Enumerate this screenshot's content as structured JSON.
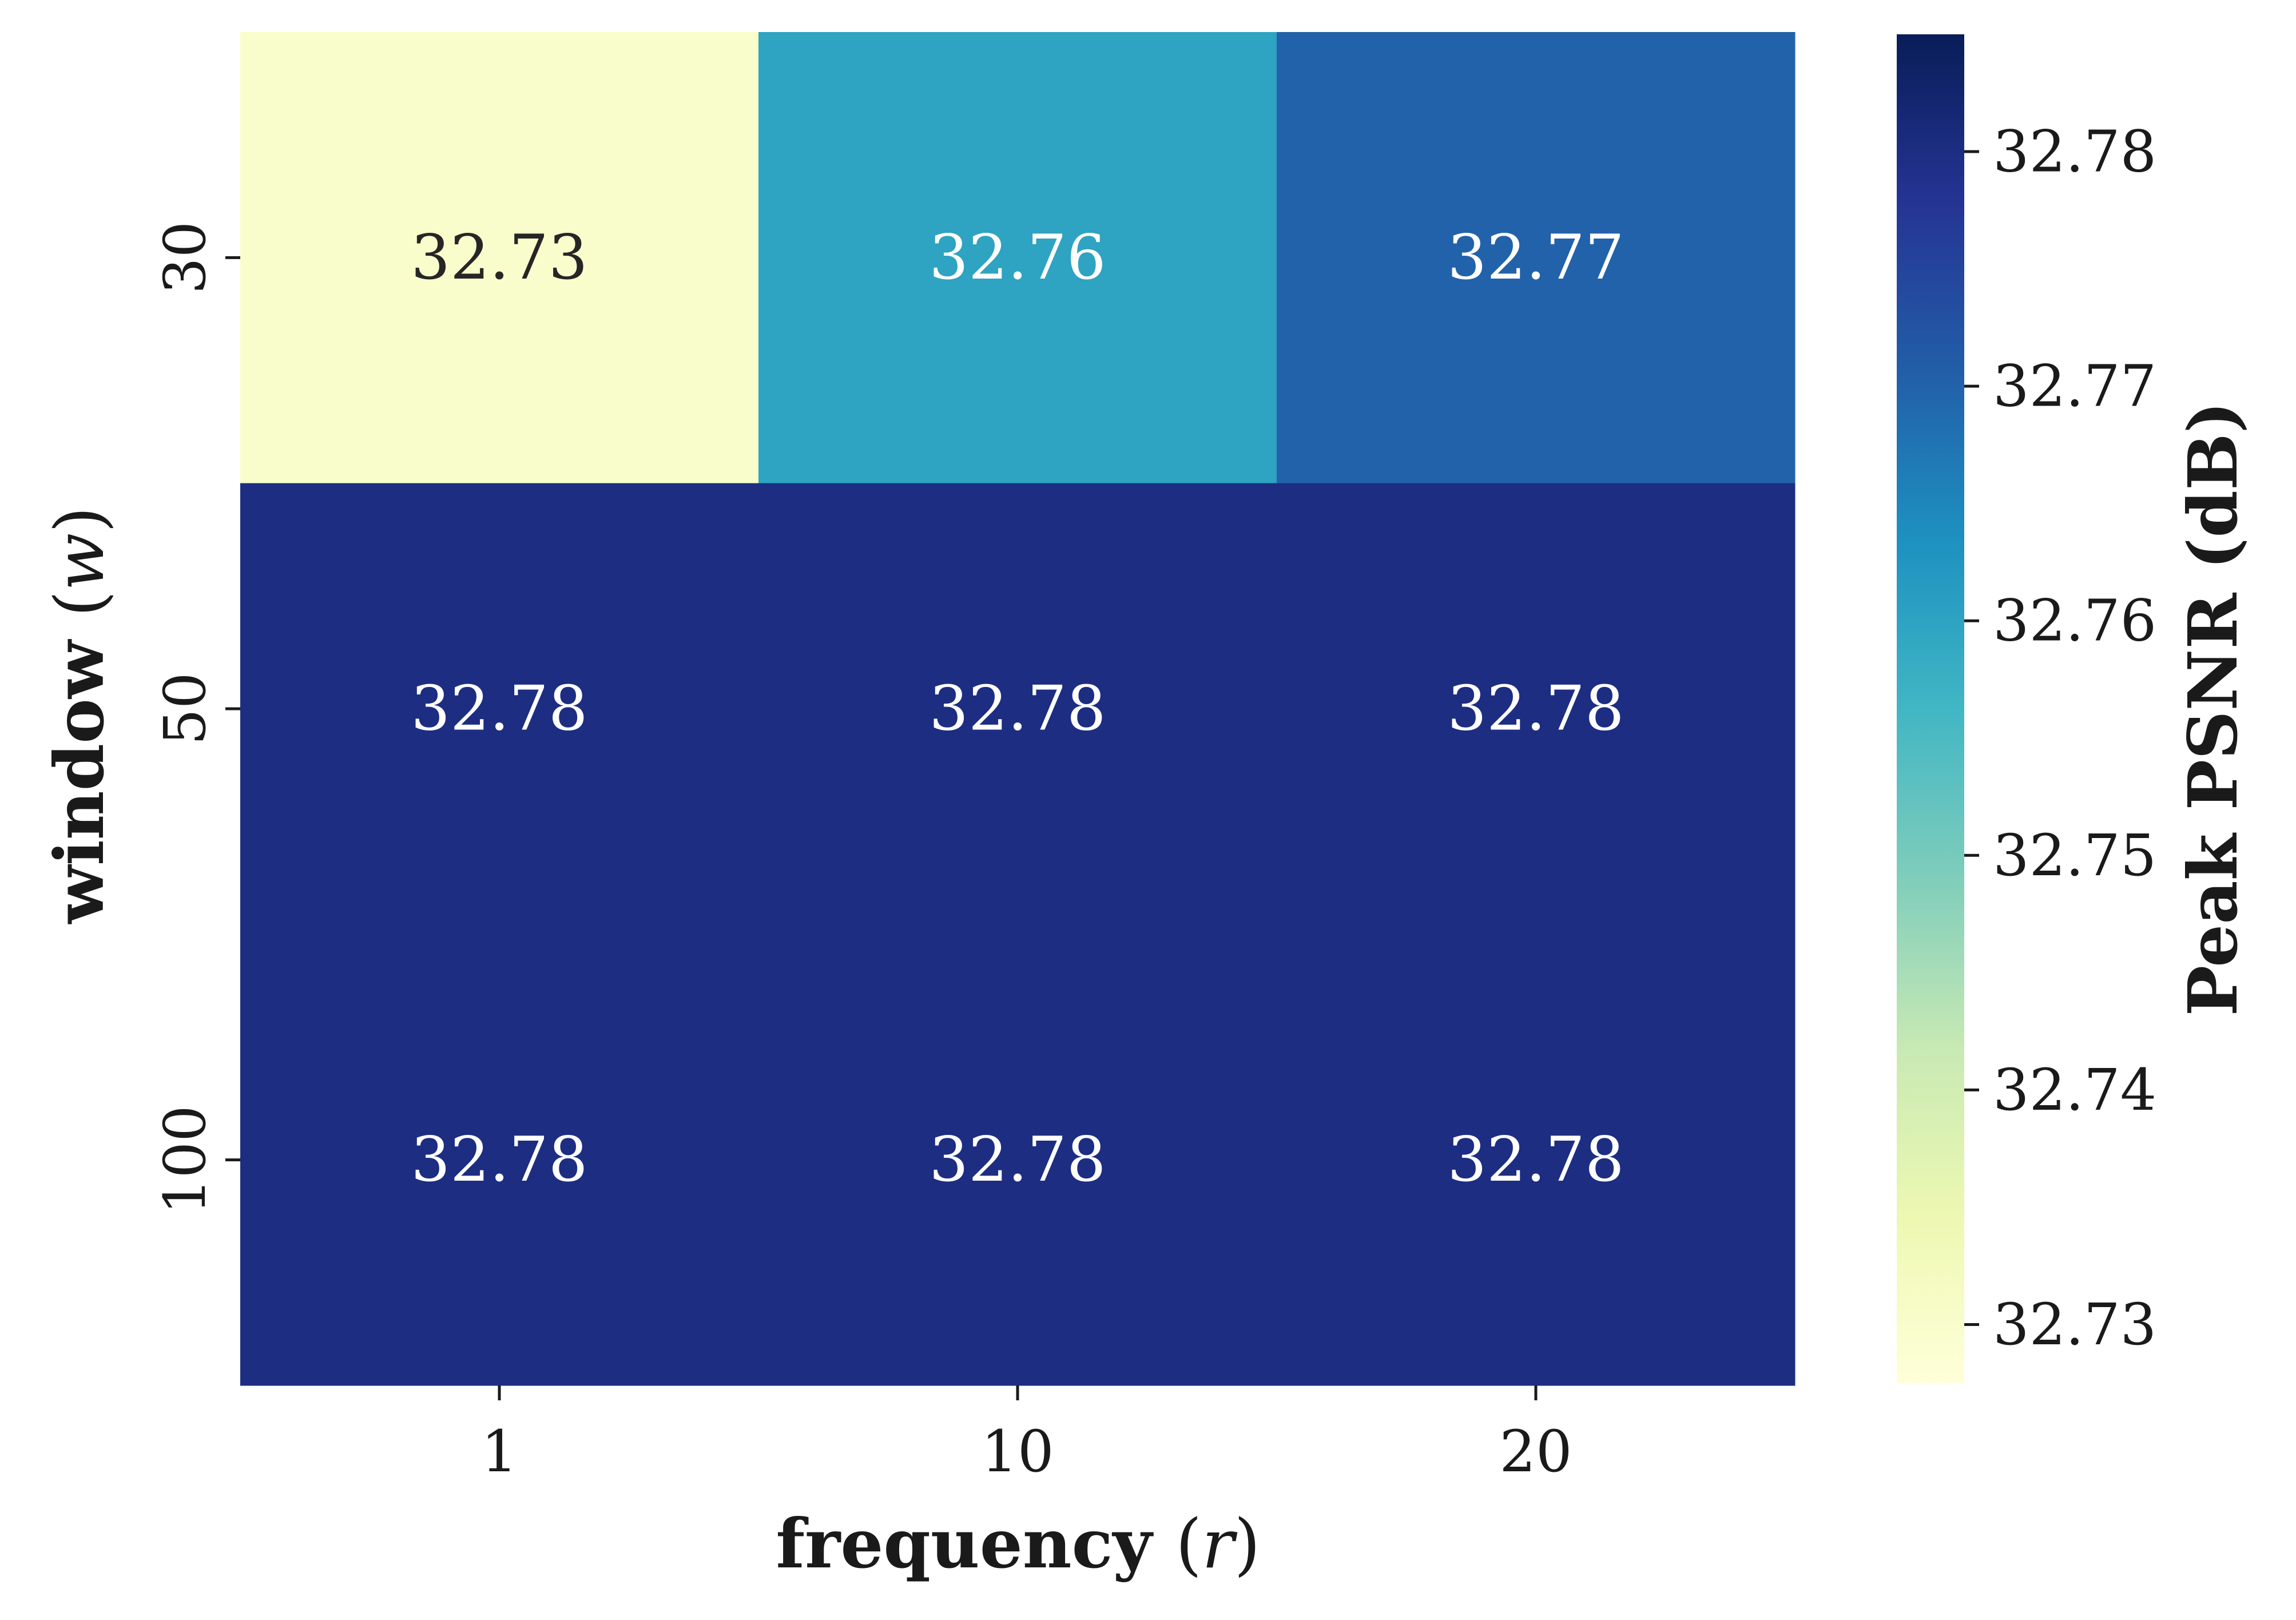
{
  "chart_data": {
    "type": "heatmap",
    "title": "",
    "xlabel": "frequency",
    "xlabel_var": "r",
    "ylabel": "window",
    "ylabel_var": "w",
    "x_categories": [
      "1",
      "10",
      "20"
    ],
    "y_categories": [
      "30",
      "50",
      "100"
    ],
    "values": [
      [
        32.73,
        32.76,
        32.77
      ],
      [
        32.78,
        32.78,
        32.78
      ],
      [
        32.78,
        32.78,
        32.78
      ]
    ],
    "value_labels": [
      [
        "32.73",
        "32.76",
        "32.77"
      ],
      [
        "32.78",
        "32.78",
        "32.78"
      ],
      [
        "32.78",
        "32.78",
        "32.78"
      ]
    ],
    "colormap": "YlGnBu",
    "colorbar": {
      "label": "Peak PSNR (dB)",
      "range": [
        32.7275,
        32.785
      ],
      "ticks": [
        32.73,
        32.74,
        32.75,
        32.76,
        32.77,
        32.78
      ],
      "tick_labels": [
        "32.73",
        "32.74",
        "32.75",
        "32.76",
        "32.77",
        "32.78"
      ]
    },
    "colors": {
      "low": "#ffffd9",
      "high": "#081d58",
      "label_dark": "#262626",
      "label_light": "#ffffff"
    }
  }
}
